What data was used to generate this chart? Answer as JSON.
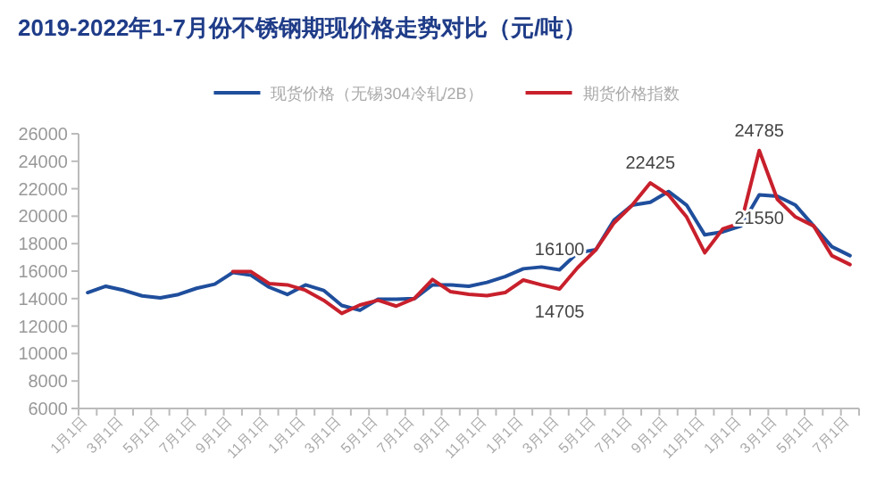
{
  "chart_data": {
    "type": "line",
    "title": "2019-2022年1-7月份不锈钢期现价格走势对比（元/吨）",
    "categories": [
      "1月1日",
      null,
      "3月1日",
      null,
      "5月1日",
      null,
      "7月1日",
      null,
      "9月1日",
      null,
      "11月1日",
      null,
      "1月1日",
      null,
      "3月1日",
      null,
      "5月1日",
      null,
      "7月1日",
      null,
      "9月1日",
      null,
      "11月1日",
      null,
      "1月1日",
      null,
      "3月1日",
      null,
      "5月1日",
      null,
      "7月1日",
      null,
      "9月1日",
      null,
      "11月1日",
      null,
      "1月1日",
      null,
      "3月1日",
      null,
      "5月1日",
      null,
      "7月1日"
    ],
    "series": [
      {
        "name": "现货价格（无锡304冷轧/2B）",
        "color": "#1f4e9c",
        "values": [
          14440,
          14900,
          14600,
          14200,
          14050,
          14300,
          14750,
          15050,
          15900,
          15700,
          14830,
          14300,
          15000,
          14600,
          13500,
          13150,
          13950,
          13950,
          14000,
          15000,
          15000,
          14900,
          15180,
          15600,
          16170,
          16300,
          16100,
          17340,
          17560,
          19720,
          20800,
          21020,
          21800,
          20800,
          18640,
          18860,
          19290,
          21550,
          21450,
          20800,
          19290,
          17780,
          17130
        ]
      },
      {
        "name": "期货价格指数",
        "color": "#c8202c",
        "values": [
          null,
          null,
          null,
          null,
          null,
          null,
          null,
          null,
          15960,
          15960,
          15090,
          15000,
          14610,
          13880,
          12920,
          13530,
          13880,
          13450,
          14010,
          15390,
          14500,
          14310,
          14220,
          14440,
          15350,
          15000,
          14705,
          16260,
          17560,
          19510,
          20800,
          22425,
          21550,
          19940,
          17340,
          19080,
          19510,
          24785,
          21230,
          19940,
          19290,
          17130,
          16480
        ]
      }
    ],
    "ylim": [
      6000,
      26000
    ],
    "yticks": [
      6000,
      8000,
      10000,
      12000,
      14000,
      16000,
      18000,
      20000,
      22000,
      24000,
      26000
    ],
    "legend": "top",
    "grid": false,
    "annotations": [
      {
        "text": "22425",
        "y": 22425
      },
      {
        "text": "24785",
        "y": 24785
      },
      {
        "text": "14705",
        "y": 14705
      },
      {
        "text": "16100",
        "y": 16100
      },
      {
        "text": "21550",
        "y": 21550
      }
    ]
  }
}
